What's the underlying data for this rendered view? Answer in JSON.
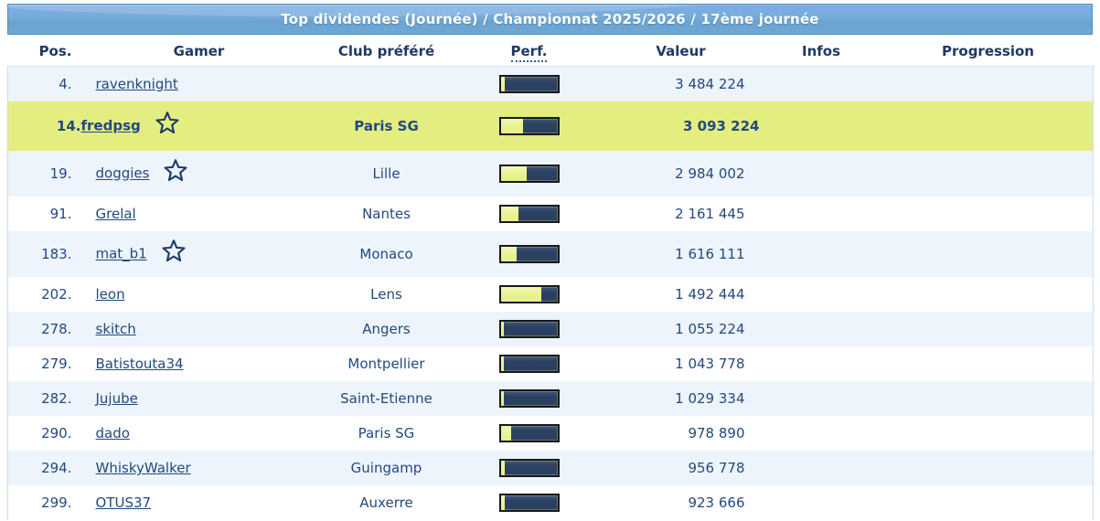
{
  "title": "Top dividendes (Journée) / Championnat 2025/2026 / 17ème journée",
  "columns": [
    "Pos.",
    "Gamer",
    "Club préféré",
    "Perf.",
    "Valeur",
    "Infos",
    "Progression"
  ],
  "colors": {
    "title_bar_blue": "#74a9d4",
    "title_bar_border": "#4a91c5",
    "header_text": "#1d3a66",
    "row_text": "#24497e",
    "row_stripe_blue": "#edf4fc",
    "highlight_yellow": "#e4ed7f",
    "bar_navy": "#2b4061",
    "bar_fill_yellow": "#eaf292"
  },
  "icons": {
    "star": "star-outline"
  },
  "rows": [
    {
      "pos": "4.",
      "gamer": "ravenknight",
      "club": "",
      "perf_pct": 8,
      "valeur": "3 484 224",
      "infos": "",
      "progression": "",
      "starred": false,
      "highlight": false
    },
    {
      "pos": "14.",
      "gamer": "fredpsg",
      "club": "Paris SG",
      "perf_pct": 40,
      "valeur": "3 093 224",
      "infos": "",
      "progression": "",
      "starred": true,
      "highlight": true
    },
    {
      "pos": "19.",
      "gamer": "doggies",
      "club": "Lille",
      "perf_pct": 46,
      "valeur": "2 984 002",
      "infos": "",
      "progression": "",
      "starred": true,
      "highlight": false
    },
    {
      "pos": "91.",
      "gamer": "Grelal",
      "club": "Nantes",
      "perf_pct": 31,
      "valeur": "2 161 445",
      "infos": "",
      "progression": "",
      "starred": false,
      "highlight": false
    },
    {
      "pos": "183.",
      "gamer": "mat_b1",
      "club": "Monaco",
      "perf_pct": 29,
      "valeur": "1 616 111",
      "infos": "",
      "progression": "",
      "starred": true,
      "highlight": false
    },
    {
      "pos": "202.",
      "gamer": "leon",
      "club": "Lens",
      "perf_pct": 72,
      "valeur": "1 492 444",
      "infos": "",
      "progression": "",
      "starred": false,
      "highlight": false
    },
    {
      "pos": "278.",
      "gamer": "skitch",
      "club": "Angers",
      "perf_pct": 5,
      "valeur": "1 055 224",
      "infos": "",
      "progression": "",
      "starred": false,
      "highlight": false
    },
    {
      "pos": "279.",
      "gamer": "Batistouta34",
      "club": "Montpellier",
      "perf_pct": 5,
      "valeur": "1 043 778",
      "infos": "",
      "progression": "",
      "starred": false,
      "highlight": false
    },
    {
      "pos": "282.",
      "gamer": "Jujube",
      "club": "Saint-Etienne",
      "perf_pct": 5,
      "valeur": "1 029 334",
      "infos": "",
      "progression": "",
      "starred": false,
      "highlight": false
    },
    {
      "pos": "290.",
      "gamer": "dado",
      "club": "Paris SG",
      "perf_pct": 18,
      "valeur": "978 890",
      "infos": "",
      "progression": "",
      "starred": false,
      "highlight": false
    },
    {
      "pos": "294.",
      "gamer": "WhiskyWalker",
      "club": "Guingamp",
      "perf_pct": 7,
      "valeur": "956 778",
      "infos": "",
      "progression": "",
      "starred": false,
      "highlight": false
    },
    {
      "pos": "299.",
      "gamer": "OTUS37",
      "club": "Auxerre",
      "perf_pct": 7,
      "valeur": "923 666",
      "infos": "",
      "progression": "",
      "starred": false,
      "highlight": false
    }
  ]
}
